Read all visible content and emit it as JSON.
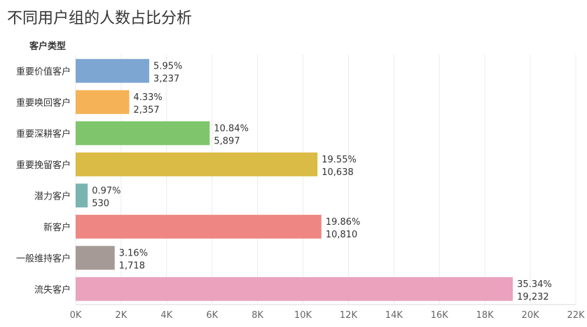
{
  "title": "不同用户组的人数占比分析",
  "chart_data": {
    "type": "bar",
    "orientation": "horizontal",
    "category_header": "客户类型",
    "categories": [
      "重要价值客户",
      "重要唤回客户",
      "重要深耕客户",
      "重要挽留客户",
      "潜力客户",
      "新客户",
      "一般维持客户",
      "流失客户"
    ],
    "values": [
      3237,
      2357,
      5897,
      10638,
      530,
      10810,
      1718,
      19232
    ],
    "percent_labels": [
      "5.95%",
      "4.33%",
      "10.84%",
      "19.55%",
      "0.97%",
      "19.86%",
      "3.16%",
      "35.34%"
    ],
    "value_labels": [
      "3,237",
      "2,357",
      "5,897",
      "10,638",
      "530",
      "10,810",
      "1,718",
      "19,232"
    ],
    "colors": [
      "#7ea6d3",
      "#f6b256",
      "#7ec56b",
      "#d9bb45",
      "#7ab4b0",
      "#ee8784",
      "#a69a96",
      "#eaa2bd"
    ],
    "x_ticks": [
      "0K",
      "2K",
      "4K",
      "6K",
      "8K",
      "10K",
      "12K",
      "14K",
      "16K",
      "18K",
      "20K",
      "22K"
    ],
    "xlim": [
      0,
      22000
    ],
    "grid": true
  }
}
